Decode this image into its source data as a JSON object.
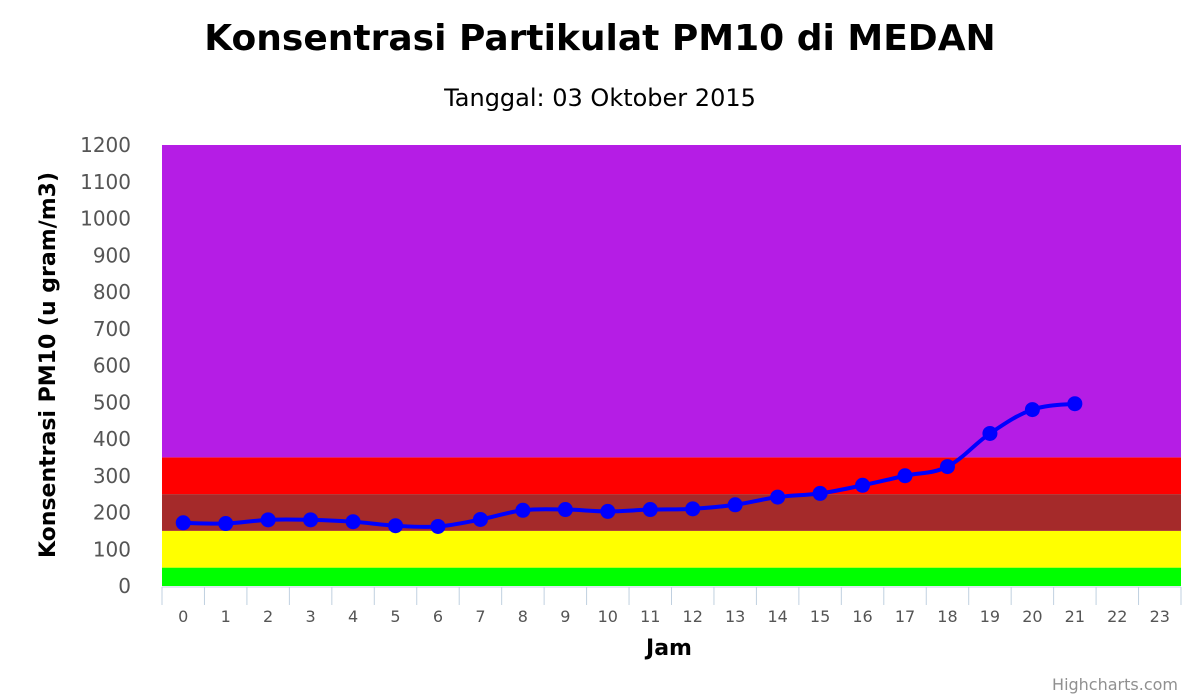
{
  "chart_data": {
    "type": "line",
    "title": "Konsentrasi Partikulat PM10 di MEDAN",
    "subtitle": "Tanggal: 03 Oktober 2015",
    "xlabel": "Jam",
    "ylabel": "Konsentrasi PM10 (u gram/m3)",
    "categories": [
      "0",
      "1",
      "2",
      "3",
      "4",
      "5",
      "6",
      "7",
      "8",
      "9",
      "10",
      "11",
      "12",
      "13",
      "14",
      "15",
      "16",
      "17",
      "18",
      "19",
      "20",
      "21",
      "22",
      "23"
    ],
    "ylim": [
      0,
      1200
    ],
    "yticks": [
      "0",
      "100",
      "200",
      "300",
      "400",
      "500",
      "600",
      "700",
      "800",
      "900",
      "1000",
      "1100",
      "1200"
    ],
    "grid": false,
    "legend": "none",
    "series": [
      {
        "color": "#0000ff",
        "values": [
          172,
          170,
          180,
          180,
          175,
          164,
          162,
          181,
          206,
          208,
          203,
          208,
          210,
          221,
          242,
          252,
          274,
          300,
          325,
          415,
          480,
          496,
          null,
          null
        ]
      }
    ],
    "bands": [
      {
        "from": 0,
        "to": 50,
        "color": "#00ff00"
      },
      {
        "from": 50,
        "to": 150,
        "color": "#ffff00"
      },
      {
        "from": 150,
        "to": 250,
        "color": "#a52a2a"
      },
      {
        "from": 250,
        "to": 350,
        "color": "#ff0000"
      },
      {
        "from": 350,
        "to": 1200,
        "color": "#b51de5"
      }
    ]
  },
  "credits": "Highcharts.com"
}
